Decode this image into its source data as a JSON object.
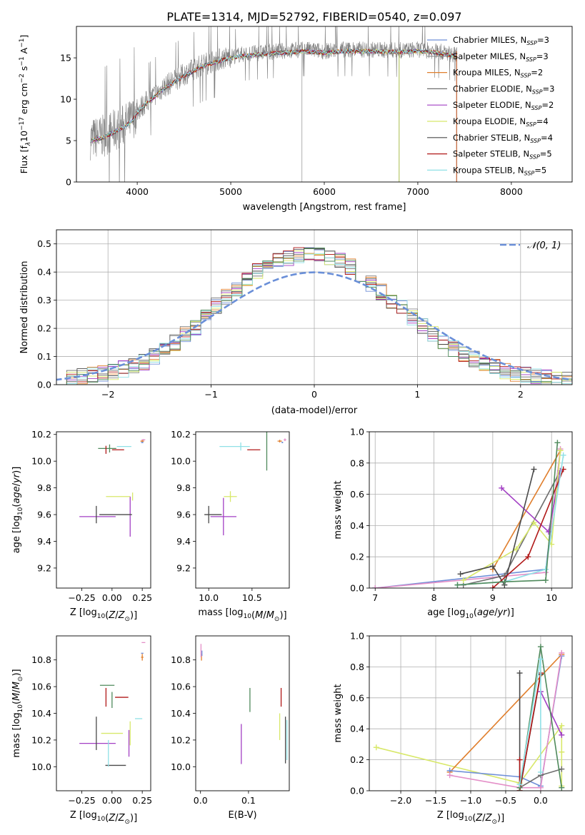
{
  "figure": {
    "title": "PLATE=1314, MJD=52792, FIBERID=0540, z=0.097"
  },
  "colors": {
    "chabrier_miles": "#6f8fd8",
    "salpeter_miles": "#8a8a8a",
    "kroupa_miles": "#e07e2c",
    "chabrier_elodie": "#6e6e6e",
    "salpeter_elodie": "#a23fc4",
    "kroupa_elodie": "#d8e86a",
    "chabrier_stelib": "#4a4a4a",
    "salpeter_stelib": "#b01818",
    "kroupa_stelib": "#8fe0e6",
    "green": "#4f8a5c",
    "pink": "#e48fc8",
    "lime": "#cfe85a",
    "gaussian": "#6a8fd8",
    "data": "#808080"
  },
  "chart_data": [
    {
      "id": "spectrum",
      "type": "line",
      "xlabel": "wavelength [Angstrom, rest frame]",
      "ylabel_parts": [
        "Flux [f",
        "λ",
        "10",
        "−17",
        " erg cm",
        "−2",
        " s",
        "−1",
        " A",
        "−1",
        "]"
      ],
      "xlim": [
        3350,
        8650
      ],
      "ylim": [
        0,
        18.8
      ],
      "xticks": [
        "4000",
        "5000",
        "6000",
        "7000",
        "8000"
      ],
      "yticks": [
        "0",
        "5",
        "10",
        "15"
      ],
      "legend_position": "right",
      "series": [
        {
          "key": "chabrier_miles",
          "label": "Chabrier MILES, N",
          "sub": "SSP",
          "suffix": "=3"
        },
        {
          "key": "salpeter_miles",
          "label": "Salpeter MILES, N",
          "sub": "SSP",
          "suffix": "=3"
        },
        {
          "key": "kroupa_miles",
          "label": "Kroupa MILES, N",
          "sub": "SSP",
          "suffix": "=2"
        },
        {
          "key": "chabrier_elodie",
          "label": "Chabrier ELODIE, N",
          "sub": "SSP",
          "suffix": "=3"
        },
        {
          "key": "salpeter_elodie",
          "label": "Salpeter ELODIE, N",
          "sub": "SSP",
          "suffix": "=2"
        },
        {
          "key": "kroupa_elodie",
          "label": "Kroupa ELODIE, N",
          "sub": "SSP",
          "suffix": "=4"
        },
        {
          "key": "chabrier_stelib",
          "label": "Chabrier STELIB, N",
          "sub": "SSP",
          "suffix": "=4"
        },
        {
          "key": "salpeter_stelib",
          "label": "Salpeter STELIB, N",
          "sub": "SSP",
          "suffix": "=5"
        },
        {
          "key": "kroupa_stelib",
          "label": "Kroupa STELIB, N",
          "sub": "SSP",
          "suffix": "=5"
        }
      ],
      "continuum": {
        "x": [
          3500,
          3650,
          3750,
          3850,
          3950,
          4000,
          4100,
          4300,
          4500,
          4700,
          4900,
          5100,
          5300,
          5500,
          5800,
          6000,
          6200,
          6500,
          6800,
          7000,
          7200,
          7400
        ],
        "y": [
          5.2,
          5.6,
          6.2,
          6.8,
          7.6,
          8.6,
          9.7,
          11.6,
          13.0,
          14.2,
          14.9,
          15.4,
          15.6,
          15.8,
          16.0,
          15.8,
          16.0,
          16.0,
          15.9,
          16.0,
          15.8,
          15.4
        ]
      }
    },
    {
      "id": "residuals",
      "type": "area",
      "xlabel": "(data-model)/error",
      "ylabel": "Normed distribution",
      "xlim": [
        -2.5,
        2.5
      ],
      "ylim": [
        0,
        0.55
      ],
      "grid": true,
      "xticks": [
        "−2",
        "−1",
        "0",
        "1",
        "2"
      ],
      "yticks": [
        "0.0",
        "0.1",
        "0.2",
        "0.3",
        "0.4",
        "0.5"
      ],
      "legend": "𝒩(0, 1)",
      "legend_position": "top-right",
      "bin_width": 0.1,
      "histogram": [
        0.018,
        0.022,
        0.028,
        0.035,
        0.042,
        0.048,
        0.056,
        0.066,
        0.08,
        0.1,
        0.12,
        0.15,
        0.18,
        0.2,
        0.24,
        0.28,
        0.31,
        0.34,
        0.37,
        0.4,
        0.43,
        0.44,
        0.45,
        0.46,
        0.46,
        0.46,
        0.45,
        0.44,
        0.42,
        0.39,
        0.36,
        0.33,
        0.3,
        0.27,
        0.24,
        0.21,
        0.18,
        0.15,
        0.13,
        0.11,
        0.09,
        0.075,
        0.062,
        0.05,
        0.042,
        0.035,
        0.028,
        0.023,
        0.018,
        0.015
      ]
    },
    {
      "id": "z-age",
      "type": "scatter",
      "xlabel": "Z [log",
      "xlabel_tail": "(Z/Z",
      "ylabel": "age  [log",
      "ylabel_tail": "(age/yr)]",
      "xlim": [
        -0.46,
        0.32
      ],
      "ylim": [
        9.05,
        10.22
      ],
      "xticks": [
        "−0.25",
        "0.00",
        "0.25"
      ],
      "yticks": [
        "9.2",
        "9.4",
        "9.6",
        "9.8",
        "10.0",
        "10.2"
      ],
      "points": [
        {
          "c": "salpeter_elodie",
          "x": -0.12,
          "y": 9.585,
          "xe": 0.3,
          "ye": 0.0
        },
        {
          "c": "salpeter_elodie",
          "x": 0.15,
          "y": 9.585,
          "xe": 0.0,
          "ye": 0.3
        },
        {
          "c": "chabrier_stelib",
          "x": -0.13,
          "y": 9.6,
          "xe": 0.0,
          "ye": 0.13
        },
        {
          "c": "chabrier_stelib",
          "x": 0.03,
          "y": 9.6,
          "xe": 0.27,
          "ye": 0.0
        },
        {
          "c": "kroupa_elodie",
          "x": 0.05,
          "y": 9.735,
          "xe": 0.2,
          "ye": 0.0
        },
        {
          "c": "kroupa_elodie",
          "x": 0.17,
          "y": 9.735,
          "xe": 0.0,
          "ye": 0.06
        },
        {
          "c": "green",
          "x": -0.04,
          "y": 10.095,
          "xe": 0.15,
          "ye": 0.0
        },
        {
          "c": "green",
          "x": -0.02,
          "y": 10.095,
          "xe": 0.0,
          "ye": 0.06
        },
        {
          "c": "salpeter_stelib",
          "x": 0.05,
          "y": 10.085,
          "xe": 0.1,
          "ye": 0.0
        },
        {
          "c": "salpeter_stelib",
          "x": -0.05,
          "y": 10.085,
          "xe": 0.0,
          "ye": 0.06
        },
        {
          "c": "kroupa_stelib",
          "x": 0.1,
          "y": 10.11,
          "xe": 0.12,
          "ye": 0.0
        },
        {
          "c": "kroupa_miles",
          "x": 0.25,
          "y": 10.15,
          "xe": 0.03,
          "ye": 0.02
        },
        {
          "c": "pink",
          "x": 0.26,
          "y": 10.16,
          "xe": 0.03,
          "ye": 0.01
        },
        {
          "c": "chabrier_miles",
          "x": 0.25,
          "y": 10.14,
          "xe": 0.02,
          "ye": 0.01
        }
      ]
    },
    {
      "id": "mass-age",
      "type": "scatter",
      "xlabel": "mass [log",
      "xlabel_tail": "(M/M",
      "xlim": [
        9.85,
        10.93
      ],
      "ylim": [
        9.05,
        10.22
      ],
      "xticks": [
        "10.0",
        "10.5"
      ],
      "yticks": [
        "9.2",
        "9.4",
        "9.6",
        "9.8",
        "10.0",
        "10.2"
      ],
      "points": [
        {
          "c": "salpeter_elodie",
          "x": 10.17,
          "y": 9.585,
          "xe": 0.3,
          "ye": 0.0
        },
        {
          "c": "salpeter_elodie",
          "x": 10.17,
          "y": 9.585,
          "xe": 0.0,
          "ye": 0.28
        },
        {
          "c": "chabrier_stelib",
          "x": 10.0,
          "y": 9.6,
          "xe": 0.0,
          "ye": 0.13
        },
        {
          "c": "chabrier_stelib",
          "x": 10.05,
          "y": 9.6,
          "xe": 0.2,
          "ye": 0.0
        },
        {
          "c": "kroupa_elodie",
          "x": 10.25,
          "y": 9.735,
          "xe": 0.15,
          "ye": 0.0
        },
        {
          "c": "kroupa_elodie",
          "x": 10.25,
          "y": 9.735,
          "xe": 0.0,
          "ye": 0.08
        },
        {
          "c": "green",
          "x": 10.67,
          "y": 10.1,
          "xe": 0.0,
          "ye": 0.34
        },
        {
          "c": "salpeter_stelib",
          "x": 10.52,
          "y": 10.085,
          "xe": 0.15,
          "ye": 0.0
        },
        {
          "c": "kroupa_stelib",
          "x": 10.3,
          "y": 10.11,
          "xe": 0.35,
          "ye": 0.0
        },
        {
          "c": "kroupa_stelib",
          "x": 10.37,
          "y": 10.11,
          "xe": 0.0,
          "ye": 0.06
        },
        {
          "c": "kroupa_miles",
          "x": 10.82,
          "y": 10.15,
          "xe": 0.05,
          "ye": 0.02
        },
        {
          "c": "pink",
          "x": 10.88,
          "y": 10.16,
          "xe": 0.03,
          "ye": 0.02
        },
        {
          "c": "chabrier_miles",
          "x": 10.85,
          "y": 10.14,
          "xe": 0.02,
          "ye": 0.01
        }
      ]
    },
    {
      "id": "age-weight",
      "type": "line",
      "xlabel": "age  [log",
      "xlabel_tail": "(age/yr)]",
      "ylabel": "mass weight",
      "xlim": [
        6.9,
        10.35
      ],
      "ylim": [
        0,
        1.0
      ],
      "grid": true,
      "xticks": [
        "7",
        "8",
        "9",
        "10"
      ],
      "yticks": [
        "0.0",
        "0.2",
        "0.4",
        "0.6",
        "0.8",
        "1.0"
      ],
      "series": [
        {
          "c": "chabrier_miles",
          "x": [
            7.0,
            9.9,
            10.15
          ],
          "y": [
            0.0,
            0.12,
            0.88
          ]
        },
        {
          "c": "kroupa_miles",
          "x": [
            9.0,
            10.15
          ],
          "y": [
            0.12,
            0.88
          ]
        },
        {
          "c": "pink",
          "x": [
            7.0,
            9.9,
            10.15
          ],
          "y": [
            0.0,
            0.1,
            0.89
          ]
        },
        {
          "c": "chabrier_elodie",
          "x": [
            8.5,
            9.2,
            10.15
          ],
          "y": [
            0.02,
            0.08,
            0.75
          ]
        },
        {
          "c": "salpeter_elodie",
          "x": [
            9.15,
            9.95,
            10.15
          ],
          "y": [
            0.64,
            0.36,
            0.75
          ]
        },
        {
          "c": "kroupa_elodie",
          "x": [
            8.5,
            9.4,
            9.7,
            10.0,
            10.15
          ],
          "y": [
            0.05,
            0.25,
            0.42,
            0.28,
            0.88
          ]
        },
        {
          "c": "chabrier_stelib",
          "x": [
            8.45,
            9.0,
            9.2,
            9.7
          ],
          "y": [
            0.09,
            0.14,
            0.02,
            0.76
          ]
        },
        {
          "c": "salpeter_stelib",
          "x": [
            9.0,
            9.6,
            10.2
          ],
          "y": [
            0.0,
            0.2,
            0.76
          ]
        },
        {
          "c": "kroupa_stelib",
          "x": [
            8.4,
            9.2,
            9.9,
            10.2
          ],
          "y": [
            0.02,
            0.04,
            0.12,
            0.85
          ]
        },
        {
          "c": "green",
          "x": [
            8.4,
            9.2,
            9.9,
            10.1
          ],
          "y": [
            0.02,
            0.04,
            0.05,
            0.93
          ]
        }
      ]
    },
    {
      "id": "z-mass",
      "type": "scatter",
      "xlabel": "Z [log",
      "xlabel_tail": "(Z/Z",
      "ylabel": "mass [log",
      "ylabel_tail": "(M/M",
      "xlim": [
        -0.46,
        0.32
      ],
      "ylim": [
        9.82,
        10.98
      ],
      "xticks": [
        "−0.25",
        "0.00",
        "0.25"
      ],
      "yticks": [
        "10.0",
        "10.2",
        "10.4",
        "10.6",
        "10.8"
      ],
      "points": [
        {
          "c": "salpeter_elodie",
          "x": -0.12,
          "y": 10.175,
          "xe": 0.3,
          "ye": 0.0
        },
        {
          "c": "salpeter_elodie",
          "x": 0.14,
          "y": 10.175,
          "xe": 0.0,
          "ye": 0.2
        },
        {
          "c": "chabrier_stelib",
          "x": -0.13,
          "y": 10.25,
          "xe": 0.0,
          "ye": 0.25
        },
        {
          "c": "chabrier_stelib",
          "x": 0.03,
          "y": 10.01,
          "xe": 0.17,
          "ye": 0.0
        },
        {
          "c": "kroupa_elodie",
          "x": 0.0,
          "y": 10.25,
          "xe": 0.18,
          "ye": 0.0
        },
        {
          "c": "kroupa_elodie",
          "x": 0.15,
          "y": 10.25,
          "xe": 0.0,
          "ye": 0.18
        },
        {
          "c": "green",
          "x": -0.04,
          "y": 10.61,
          "xe": 0.12,
          "ye": 0.0
        },
        {
          "c": "green",
          "x": 0.0,
          "y": 10.5,
          "xe": 0.0,
          "ye": 0.12
        },
        {
          "c": "salpeter_stelib",
          "x": 0.08,
          "y": 10.52,
          "xe": 0.11,
          "ye": 0.0
        },
        {
          "c": "salpeter_stelib",
          "x": -0.05,
          "y": 10.52,
          "xe": 0.0,
          "ye": 0.14
        },
        {
          "c": "kroupa_stelib",
          "x": 0.22,
          "y": 10.36,
          "xe": 0.06,
          "ye": 0.0
        },
        {
          "c": "kroupa_stelib",
          "x": -0.03,
          "y": 10.1,
          "xe": 0.0,
          "ye": 0.2
        },
        {
          "c": "kroupa_miles",
          "x": 0.25,
          "y": 10.82,
          "xe": 0.02,
          "ye": 0.05
        },
        {
          "c": "pink",
          "x": 0.26,
          "y": 10.93,
          "xe": 0.03,
          "ye": 0.0
        },
        {
          "c": "chabrier_miles",
          "x": 0.25,
          "y": 10.85,
          "xe": 0.02,
          "ye": 0.0
        }
      ]
    },
    {
      "id": "ebv-mass",
      "type": "scatter",
      "xlabel": "E(B-V)",
      "xlim": [
        -0.01,
        0.185
      ],
      "ylim": [
        9.82,
        10.98
      ],
      "xticks": [
        "0.0",
        "0.1"
      ],
      "yticks": [
        "10.0",
        "10.2",
        "10.4",
        "10.6",
        "10.8"
      ],
      "points": [
        {
          "c": "kroupa_miles",
          "x": 0.002,
          "y": 10.82,
          "xe": 0.0,
          "ye": 0.05
        },
        {
          "c": "pink",
          "x": 0.001,
          "y": 10.87,
          "xe": 0.0,
          "ye": 0.1
        },
        {
          "c": "chabrier_miles",
          "x": 0.003,
          "y": 10.85,
          "xe": 0.0,
          "ye": 0.04
        },
        {
          "c": "salpeter_elodie",
          "x": 0.085,
          "y": 10.17,
          "xe": 0.0,
          "ye": 0.3
        },
        {
          "c": "green",
          "x": 0.103,
          "y": 10.5,
          "xe": 0.0,
          "ye": 0.18
        },
        {
          "c": "kroupa_elodie",
          "x": 0.165,
          "y": 10.3,
          "xe": 0.0,
          "ye": 0.2
        },
        {
          "c": "salpeter_stelib",
          "x": 0.168,
          "y": 10.52,
          "xe": 0.0,
          "ye": 0.14
        },
        {
          "c": "chabrier_stelib",
          "x": 0.177,
          "y": 10.2,
          "xe": 0.0,
          "ye": 0.35
        },
        {
          "c": "kroupa_stelib",
          "x": 0.18,
          "y": 10.2,
          "xe": 0.0,
          "ye": 0.3
        }
      ]
    },
    {
      "id": "z-weight",
      "type": "line",
      "xlabel": "Z [log",
      "xlabel_tail": "(Z/Z",
      "ylabel": "mass weight",
      "xlim": [
        -2.45,
        0.45
      ],
      "ylim": [
        0,
        1.0
      ],
      "grid": true,
      "xticks": [
        "−2.0",
        "−1.5",
        "−1.0",
        "−0.5",
        "0.0"
      ],
      "yticks": [
        "0.0",
        "0.2",
        "0.4",
        "0.6",
        "0.8",
        "1.0"
      ],
      "series": [
        {
          "c": "kroupa_elodie",
          "x": [
            -2.35,
            -0.3,
            0.3,
            0.3,
            0.3
          ],
          "y": [
            0.28,
            0.05,
            0.42,
            0.25,
            0.03
          ]
        },
        {
          "c": "kroupa_miles",
          "x": [
            -1.3,
            0.3
          ],
          "y": [
            0.12,
            0.88
          ]
        },
        {
          "c": "chabrier_miles",
          "x": [
            -1.3,
            -0.3,
            0.0,
            0.3
          ],
          "y": [
            0.13,
            0.09,
            0.03,
            0.87
          ]
        },
        {
          "c": "pink",
          "x": [
            -1.3,
            -0.3,
            0.0,
            0.3
          ],
          "y": [
            0.1,
            0.02,
            0.02,
            0.89
          ]
        },
        {
          "c": "chabrier_elodie",
          "x": [
            -0.3,
            0.0,
            0.3
          ],
          "y": [
            0.02,
            0.1,
            0.14
          ]
        },
        {
          "c": "chabrier_stelib",
          "x": [
            -0.3,
            -0.3,
            0.0
          ],
          "y": [
            0.76,
            0.0,
            0.75
          ]
        },
        {
          "c": "salpeter_elodie",
          "x": [
            0.0,
            0.3
          ],
          "y": [
            0.64,
            0.36
          ]
        },
        {
          "c": "salpeter_stelib",
          "x": [
            -0.3,
            -0.3,
            0.0
          ],
          "y": [
            0.2,
            0.0,
            0.76
          ]
        },
        {
          "c": "green",
          "x": [
            -0.3,
            0.0,
            0.3
          ],
          "y": [
            0.02,
            0.93,
            0.02
          ]
        },
        {
          "c": "kroupa_stelib",
          "x": [
            -0.3,
            0.0,
            0.0
          ],
          "y": [
            0.04,
            0.85,
            0.12
          ]
        }
      ]
    }
  ]
}
